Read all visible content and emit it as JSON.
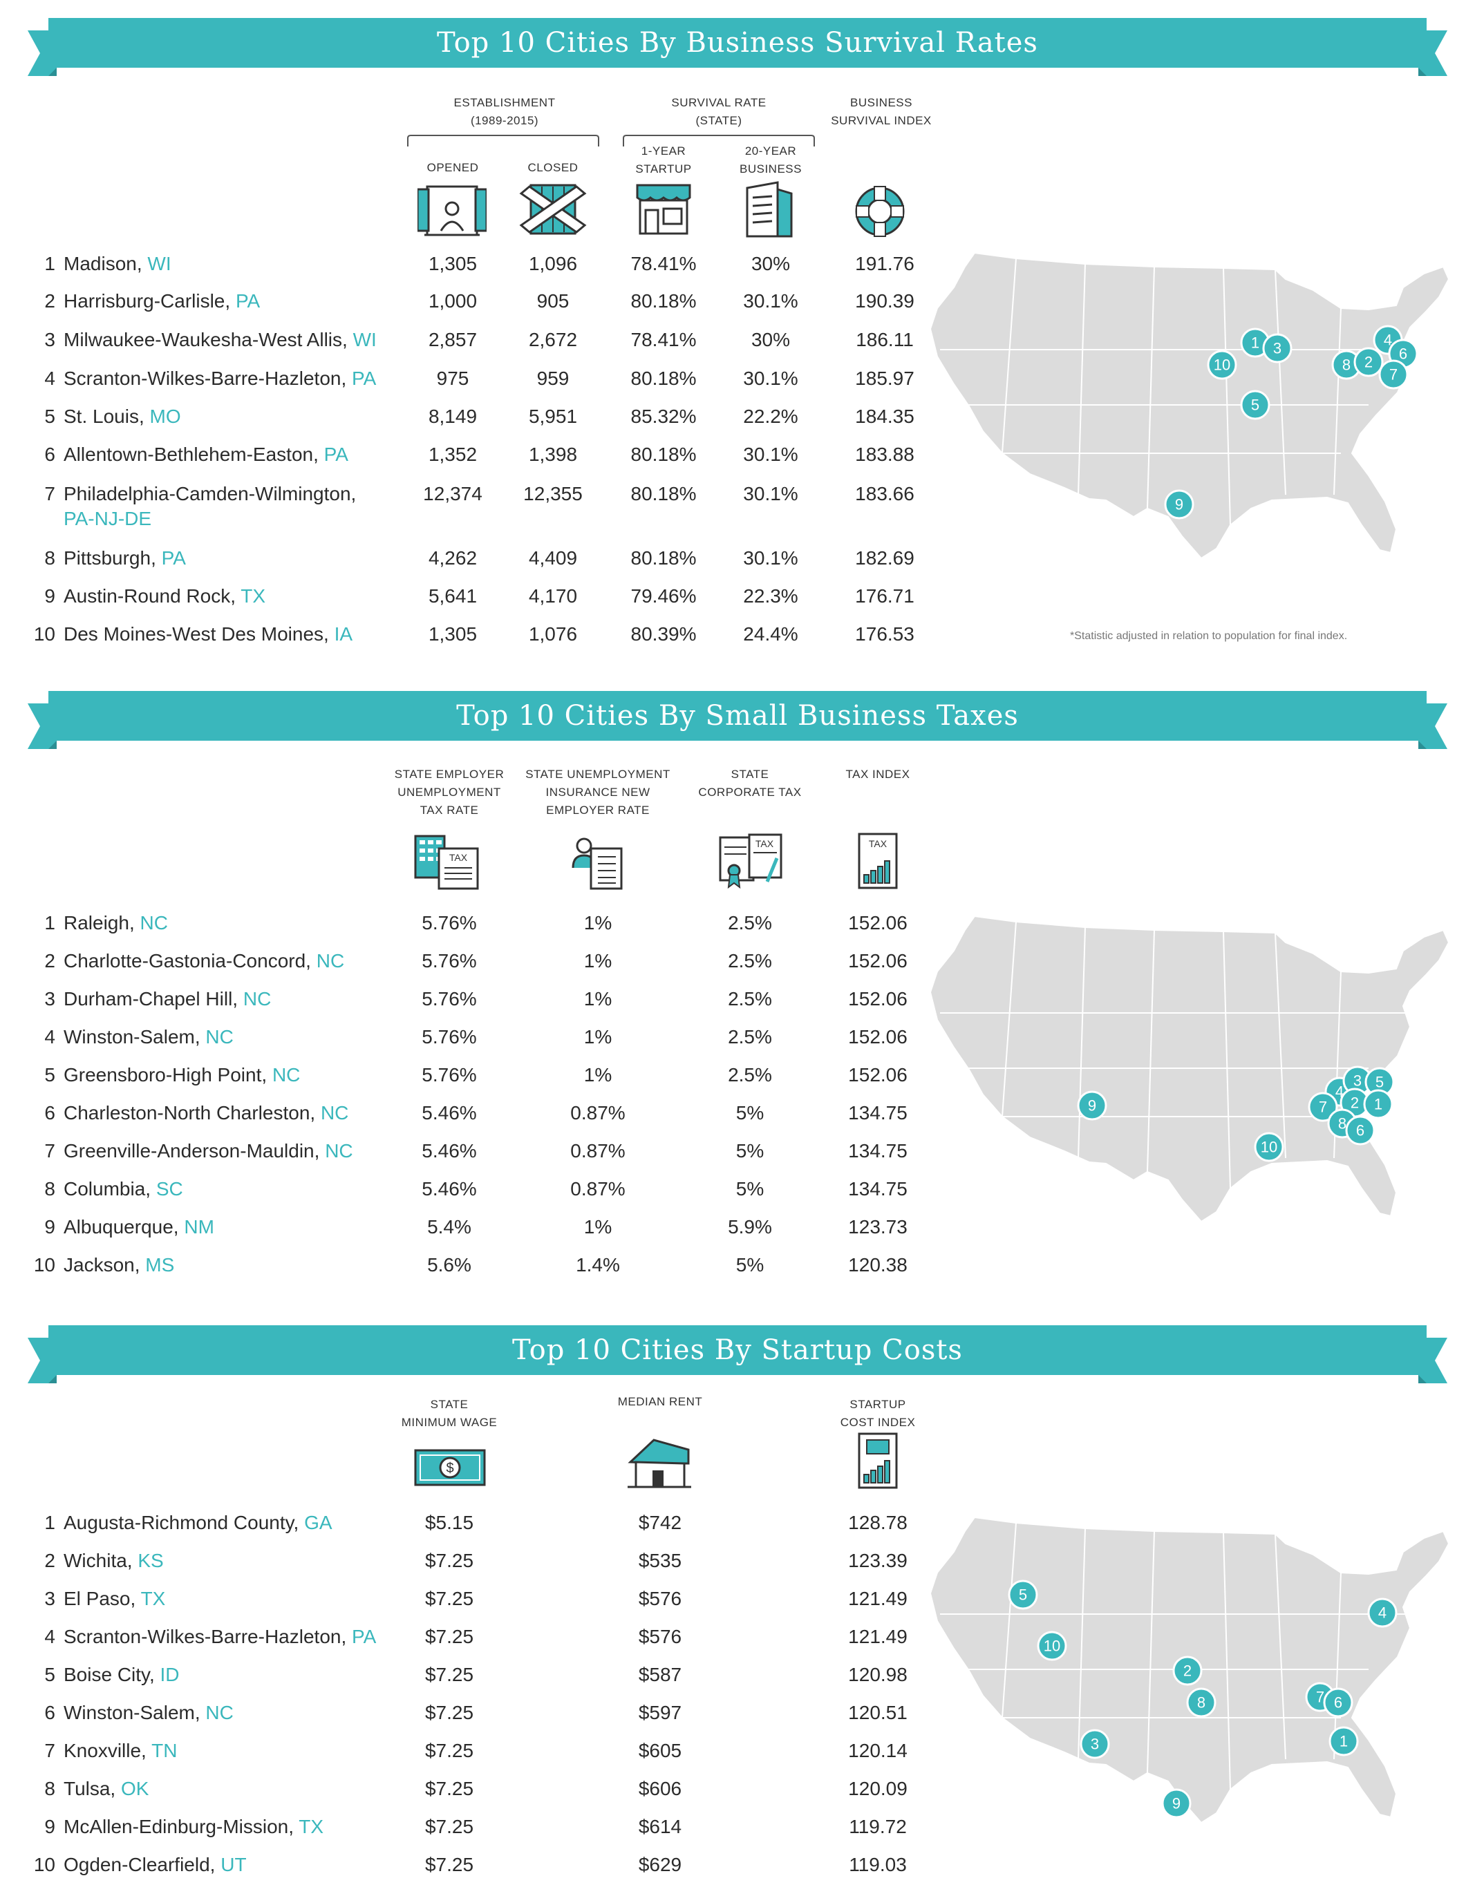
{
  "colors": {
    "accent": "#3ab7bc",
    "accent_dark": "#2a8f94",
    "map_fill": "#dcdcdc"
  },
  "survival": {
    "title": "Top 10 Cities By Business Survival Rates",
    "group_establishment": [
      "ESTABLISHMENT",
      "(1989-2015)"
    ],
    "group_survival": [
      "SURVIVAL RATE",
      "(STATE)"
    ],
    "col_opened": "OPENED",
    "col_closed": "CLOSED",
    "col_startup": [
      "1-YEAR",
      "STARTUP"
    ],
    "col_business": [
      "20-YEAR",
      "BUSINESS"
    ],
    "col_index": [
      "BUSINESS",
      "SURVIVAL INDEX"
    ],
    "icons": [
      "open-shop-icon",
      "closed-shop-icon",
      "storefront-icon",
      "office-building-icon",
      "life-ring-icon"
    ],
    "footnote": "*Statistic adjusted in relation to population for final index.",
    "rows": [
      {
        "rank": "1",
        "city": "Madison, ",
        "state": "WI",
        "v1": "1,305",
        "v2": "1,096",
        "v3": "78.41%",
        "v4": "30%",
        "v5": "191.76"
      },
      {
        "rank": "2",
        "city": "Harrisburg-Carlisle, ",
        "state": "PA",
        "v1": "1,000",
        "v2": "905",
        "v3": "80.18%",
        "v4": "30.1%",
        "v5": "190.39"
      },
      {
        "rank": "3",
        "city": "Milwaukee-Waukesha-West Allis, ",
        "state": "WI",
        "v1": "2,857",
        "v2": "2,672",
        "v3": "78.41%",
        "v4": "30%",
        "v5": "186.11"
      },
      {
        "rank": "4",
        "city": "Scranton-Wilkes-Barre-Hazleton, ",
        "state": "PA",
        "v1": "975",
        "v2": "959",
        "v3": "80.18%",
        "v4": "30.1%",
        "v5": "185.97"
      },
      {
        "rank": "5",
        "city": "St. Louis, ",
        "state": "MO",
        "v1": "8,149",
        "v2": "5,951",
        "v3": "85.32%",
        "v4": "22.2%",
        "v5": "184.35"
      },
      {
        "rank": "6",
        "city": "Allentown-Bethlehem-Easton, ",
        "state": "PA",
        "v1": "1,352",
        "v2": "1,398",
        "v3": "80.18%",
        "v4": "30.1%",
        "v5": "183.88"
      },
      {
        "rank": "7",
        "city": "Philadelphia-Camden-Wilmington,",
        "state": "PA-NJ-DE",
        "v1": "12,374",
        "v2": "12,355",
        "v3": "80.18%",
        "v4": "30.1%",
        "v5": "183.66"
      },
      {
        "rank": "8",
        "city": "Pittsburgh, ",
        "state": "PA",
        "v1": "4,262",
        "v2": "4,409",
        "v3": "80.18%",
        "v4": "30.1%",
        "v5": "182.69"
      },
      {
        "rank": "9",
        "city": "Austin-Round Rock, ",
        "state": "TX",
        "v1": "5,641",
        "v2": "4,170",
        "v3": "79.46%",
        "v4": "22.3%",
        "v5": "176.71"
      },
      {
        "rank": "10",
        "city": "Des Moines-West Des Moines, ",
        "state": "IA",
        "v1": "1,305",
        "v2": "1,076",
        "v3": "80.39%",
        "v4": "24.4%",
        "v5": "176.53"
      }
    ],
    "markers": [
      "1",
      "3",
      "10",
      "5",
      "9",
      "8",
      "2",
      "4",
      "6",
      "7"
    ]
  },
  "taxes": {
    "title": "Top 10 Cities By Small Business Taxes",
    "col_a": [
      "STATE EMPLOYER",
      "UNEMPLOYMENT",
      "TAX RATE"
    ],
    "col_b": [
      "STATE UNEMPLOYMENT",
      "INSURANCE NEW",
      "EMPLOYER RATE"
    ],
    "col_c": [
      "STATE",
      "CORPORATE TAX"
    ],
    "col_d": [
      "TAX INDEX"
    ],
    "tax_label": "TAX",
    "icons": [
      "tax-building-icon",
      "employee-checklist-icon",
      "corporate-tax-document-icon",
      "tax-index-chart-icon"
    ],
    "rows": [
      {
        "rank": "1",
        "city": "Raleigh, ",
        "state": "NC",
        "v1": "5.76%",
        "v2": "1%",
        "v3": "2.5%",
        "v4": "152.06"
      },
      {
        "rank": "2",
        "city": "Charlotte-Gastonia-Concord, ",
        "state": "NC",
        "v1": "5.76%",
        "v2": "1%",
        "v3": "2.5%",
        "v4": "152.06"
      },
      {
        "rank": "3",
        "city": "Durham-Chapel Hill, ",
        "state": "NC",
        "v1": "5.76%",
        "v2": "1%",
        "v3": "2.5%",
        "v4": "152.06"
      },
      {
        "rank": "4",
        "city": "Winston-Salem, ",
        "state": "NC",
        "v1": "5.76%",
        "v2": "1%",
        "v3": "2.5%",
        "v4": "152.06"
      },
      {
        "rank": "5",
        "city": "Greensboro-High Point, ",
        "state": "NC",
        "v1": "5.76%",
        "v2": "1%",
        "v3": "2.5%",
        "v4": "152.06"
      },
      {
        "rank": "6",
        "city": "Charleston-North Charleston, ",
        "state": "NC",
        "v1": "5.46%",
        "v2": "0.87%",
        "v3": "5%",
        "v4": "134.75"
      },
      {
        "rank": "7",
        "city": "Greenville-Anderson-Mauldin, ",
        "state": "NC",
        "v1": "5.46%",
        "v2": "0.87%",
        "v3": "5%",
        "v4": "134.75"
      },
      {
        "rank": "8",
        "city": "Columbia, ",
        "state": "SC",
        "v1": "5.46%",
        "v2": "0.87%",
        "v3": "5%",
        "v4": "134.75"
      },
      {
        "rank": "9",
        "city": "Albuquerque, ",
        "state": "NM",
        "v1": "5.4%",
        "v2": "1%",
        "v3": "5.9%",
        "v4": "123.73"
      },
      {
        "rank": "10",
        "city": "Jackson, ",
        "state": "MS",
        "v1": "5.6%",
        "v2": "1.4%",
        "v3": "5%",
        "v4": "120.38"
      }
    ],
    "markers": [
      "9",
      "10",
      "4",
      "3",
      "5",
      "2",
      "1",
      "7",
      "8",
      "6"
    ]
  },
  "startup": {
    "title": "Top 10 Cities By Startup Costs",
    "col_a": [
      "STATE",
      "MINIMUM WAGE"
    ],
    "col_b": [
      "MEDIAN RENT"
    ],
    "col_c": [
      "STARTUP",
      "COST INDEX"
    ],
    "icons": [
      "dollar-bill-icon",
      "house-icon",
      "startup-index-chart-icon"
    ],
    "rows": [
      {
        "rank": "1",
        "city": "Augusta-Richmond County, ",
        "state": "GA",
        "v1": "$5.15",
        "v2": "$742",
        "v3": "128.78"
      },
      {
        "rank": "2",
        "city": "Wichita, ",
        "state": "KS",
        "v1": "$7.25",
        "v2": "$535",
        "v3": "123.39"
      },
      {
        "rank": "3",
        "city": "El Paso, ",
        "state": "TX",
        "v1": "$7.25",
        "v2": "$576",
        "v3": "121.49"
      },
      {
        "rank": "4",
        "city": "Scranton-Wilkes-Barre-Hazleton, ",
        "state": "PA",
        "v1": "$7.25",
        "v2": "$576",
        "v3": "121.49"
      },
      {
        "rank": "5",
        "city": "Boise City, ",
        "state": "ID",
        "v1": "$7.25",
        "v2": "$587",
        "v3": "120.98"
      },
      {
        "rank": "6",
        "city": "Winston-Salem, ",
        "state": "NC",
        "v1": "$7.25",
        "v2": "$597",
        "v3": "120.51"
      },
      {
        "rank": "7",
        "city": "Knoxville, ",
        "state": "TN",
        "v1": "$7.25",
        "v2": "$605",
        "v3": "120.14"
      },
      {
        "rank": "8",
        "city": "Tulsa, ",
        "state": "OK",
        "v1": "$7.25",
        "v2": "$606",
        "v3": "120.09"
      },
      {
        "rank": "9",
        "city": "McAllen-Edinburg-Mission, ",
        "state": "TX",
        "v1": "$7.25",
        "v2": "$614",
        "v3": "119.72"
      },
      {
        "rank": "10",
        "city": "Ogden-Clearfield, ",
        "state": "UT",
        "v1": "$7.25",
        "v2": "$629",
        "v3": "119.03"
      }
    ],
    "markers": [
      "5",
      "10",
      "4",
      "2",
      "8",
      "7",
      "6",
      "1",
      "3",
      "9"
    ]
  }
}
